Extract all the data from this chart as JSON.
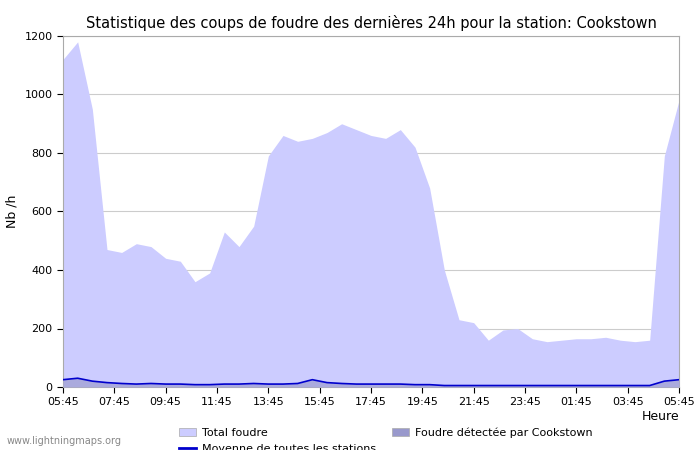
{
  "title": "Statistique des coups de foudre des dernières 24h pour la station: Cookstown",
  "ylabel": "Nb /h",
  "xlabel": "Heure",
  "watermark": "www.lightningmaps.org",
  "ylim": [
    0,
    1200
  ],
  "yticks": [
    0,
    200,
    400,
    600,
    800,
    1000,
    1200
  ],
  "xtick_labels": [
    "05:45",
    "07:45",
    "09:45",
    "11:45",
    "13:45",
    "15:45",
    "17:45",
    "19:45",
    "21:45",
    "23:45",
    "01:45",
    "03:45",
    "05:45"
  ],
  "legend": {
    "total_foudre_label": "Total foudre",
    "total_foudre_color": "#ccccff",
    "moyenne_label": "Moyenne de toutes les stations",
    "moyenne_color": "#0000cc",
    "cookstown_label": "Foudre détectée par Cookstown",
    "cookstown_color": "#9999cc"
  },
  "total_foudre": [
    1120,
    1180,
    950,
    470,
    460,
    490,
    480,
    440,
    430,
    360,
    390,
    530,
    480,
    550,
    790,
    860,
    840,
    850,
    870,
    900,
    880,
    860,
    850,
    880,
    820,
    680,
    400,
    230,
    220,
    160,
    195,
    200,
    165,
    155,
    160,
    165,
    165,
    170,
    160,
    155,
    160,
    790,
    980
  ],
  "cookstown": [
    25,
    30,
    20,
    15,
    12,
    10,
    12,
    10,
    10,
    8,
    8,
    10,
    10,
    12,
    10,
    10,
    12,
    25,
    15,
    12,
    10,
    10,
    10,
    10,
    8,
    8,
    5,
    5,
    5,
    5,
    5,
    5,
    5,
    5,
    5,
    5,
    5,
    5,
    5,
    5,
    5,
    20,
    25
  ],
  "moyenne": [
    25,
    30,
    20,
    15,
    12,
    10,
    12,
    10,
    10,
    8,
    8,
    10,
    10,
    12,
    10,
    10,
    12,
    25,
    15,
    12,
    10,
    10,
    10,
    10,
    8,
    8,
    5,
    5,
    5,
    5,
    5,
    5,
    5,
    5,
    5,
    5,
    5,
    5,
    5,
    5,
    5,
    20,
    25
  ],
  "bg_color": "#ffffff",
  "plot_bg_color": "#ffffff",
  "grid_color": "#cccccc",
  "title_fontsize": 10.5,
  "axis_fontsize": 9,
  "tick_fontsize": 8
}
